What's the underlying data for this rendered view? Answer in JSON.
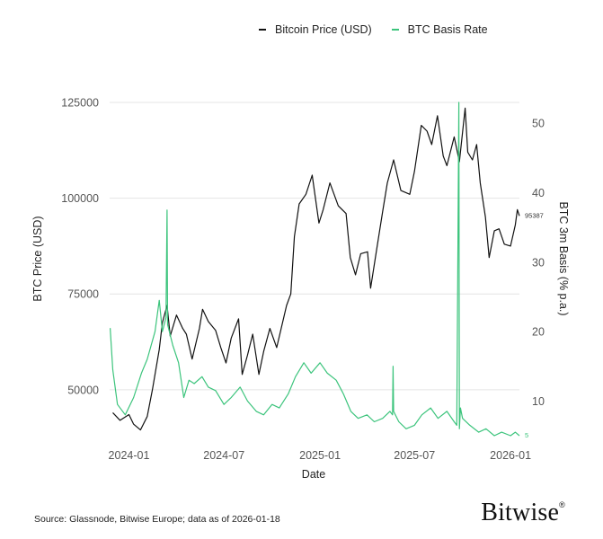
{
  "legend": {
    "price_label": "Bitcoin Price (USD)",
    "basis_label": "BTC Basis Rate",
    "price_color": "#111111",
    "basis_color": "#3cc47c"
  },
  "source": "Source: Glassnode, Bitwise Europe; data as of 2026-01-18",
  "brand": {
    "name": "Bitwise",
    "mark": "®"
  },
  "chart_data": {
    "type": "line",
    "xlabel": "Date",
    "ylabel_left": "BTC Price (USD)",
    "ylabel_right": "BTC 3m Basis (% p.a.)",
    "x_ticks": [
      "2024-01",
      "2024-07",
      "2025-01",
      "2025-07",
      "2026-01"
    ],
    "y_left_ticks": [
      50000,
      75000,
      100000,
      125000
    ],
    "y_right_ticks": [
      10,
      20,
      30,
      40,
      50
    ],
    "y_left_range": [
      38000,
      125000
    ],
    "y_right_range": [
      5,
      53
    ],
    "x_range": [
      "2023-11-25",
      "2026-01-18"
    ],
    "grid": true,
    "legend_position": "top-right",
    "end_labels": {
      "price": "95387",
      "basis": "5"
    },
    "series": [
      {
        "name": "Bitcoin Price (USD)",
        "axis": "left",
        "x": [
          "2023-12-01",
          "2023-12-15",
          "2024-01-01",
          "2024-01-10",
          "2024-01-23",
          "2024-02-05",
          "2024-02-15",
          "2024-02-28",
          "2024-03-05",
          "2024-03-14",
          "2024-03-20",
          "2024-04-01",
          "2024-04-13",
          "2024-04-20",
          "2024-05-01",
          "2024-05-15",
          "2024-05-21",
          "2024-06-01",
          "2024-06-15",
          "2024-06-25",
          "2024-07-05",
          "2024-07-15",
          "2024-07-29",
          "2024-08-05",
          "2024-08-15",
          "2024-08-25",
          "2024-09-06",
          "2024-09-15",
          "2024-09-27",
          "2024-10-10",
          "2024-10-29",
          "2024-11-06",
          "2024-11-13",
          "2024-11-22",
          "2024-12-05",
          "2024-12-17",
          "2024-12-30",
          "2025-01-07",
          "2025-01-20",
          "2025-02-05",
          "2025-02-20",
          "2025-02-28",
          "2025-03-10",
          "2025-03-20",
          "2025-04-02",
          "2025-04-08",
          "2025-04-20",
          "2025-05-01",
          "2025-05-10",
          "2025-05-22",
          "2025-06-05",
          "2025-06-22",
          "2025-07-01",
          "2025-07-14",
          "2025-07-25",
          "2025-08-03",
          "2025-08-14",
          "2025-08-25",
          "2025-09-01",
          "2025-09-15",
          "2025-09-25",
          "2025-10-06",
          "2025-10-11",
          "2025-10-20",
          "2025-10-28",
          "2025-11-04",
          "2025-11-14",
          "2025-11-21",
          "2025-12-01",
          "2025-12-10",
          "2025-12-20",
          "2026-01-01",
          "2026-01-10",
          "2026-01-14",
          "2026-01-18"
        ],
        "values": [
          44000,
          42000,
          43500,
          41000,
          39500,
          43000,
          50000,
          60500,
          67500,
          72000,
          64000,
          69500,
          66000,
          64500,
          58000,
          66000,
          71000,
          67800,
          65500,
          61000,
          57000,
          63500,
          68500,
          54000,
          59000,
          64500,
          54000,
          60000,
          66000,
          61000,
          72000,
          75000,
          90000,
          98500,
          101000,
          106000,
          93500,
          97000,
          104000,
          98000,
          96000,
          84500,
          80000,
          85500,
          86000,
          76500,
          87000,
          96500,
          104000,
          110000,
          102000,
          101000,
          107000,
          119000,
          117500,
          114000,
          121500,
          111000,
          108500,
          116000,
          109500,
          123500,
          112000,
          110000,
          114000,
          104000,
          95000,
          84500,
          91500,
          92000,
          88000,
          87500,
          93000,
          97000,
          95387
        ]
      },
      {
        "name": "BTC Basis Rate",
        "axis": "right",
        "x": [
          "2023-11-26",
          "2023-12-01",
          "2023-12-10",
          "2023-12-25",
          "2024-01-10",
          "2024-01-25",
          "2024-02-05",
          "2024-02-20",
          "2024-02-28",
          "2024-03-05",
          "2024-03-12",
          "2024-03-14",
          "2024-03-15",
          "2024-03-25",
          "2024-04-05",
          "2024-04-15",
          "2024-04-25",
          "2024-05-05",
          "2024-05-20",
          "2024-06-01",
          "2024-06-15",
          "2024-07-01",
          "2024-07-15",
          "2024-08-01",
          "2024-08-15",
          "2024-09-01",
          "2024-09-15",
          "2024-10-01",
          "2024-10-15",
          "2024-11-01",
          "2024-11-15",
          "2024-12-01",
          "2024-12-15",
          "2025-01-01",
          "2025-01-15",
          "2025-02-01",
          "2025-02-15",
          "2025-03-01",
          "2025-03-15",
          "2025-04-01",
          "2025-04-15",
          "2025-05-01",
          "2025-05-15",
          "2025-05-20",
          "2025-05-21",
          "2025-05-22",
          "2025-06-01",
          "2025-06-15",
          "2025-07-01",
          "2025-07-15",
          "2025-08-01",
          "2025-08-15",
          "2025-09-01",
          "2025-09-15",
          "2025-09-20",
          "2025-09-24",
          "2025-09-25",
          "2025-09-27",
          "2025-10-01",
          "2025-10-15",
          "2025-11-01",
          "2025-11-15",
          "2025-12-01",
          "2025-12-15",
          "2026-01-01",
          "2026-01-10",
          "2026-01-18"
        ],
        "values": [
          20.5,
          14.5,
          9.5,
          8.0,
          10.5,
          14.0,
          16.0,
          20.0,
          24.5,
          20.0,
          22.0,
          37.5,
          21.0,
          18.0,
          15.5,
          10.5,
          13.0,
          12.5,
          13.5,
          12.0,
          11.5,
          9.5,
          10.5,
          12.0,
          10.0,
          8.5,
          8.0,
          9.5,
          9.0,
          11.0,
          13.5,
          15.5,
          14.0,
          15.5,
          14.0,
          13.0,
          11.0,
          8.5,
          7.5,
          8.0,
          7.0,
          7.5,
          8.5,
          8.0,
          15.0,
          8.5,
          7.0,
          6.0,
          6.5,
          8.0,
          9.0,
          7.5,
          8.5,
          7.0,
          6.5,
          53.0,
          6.0,
          9.0,
          7.5,
          6.5,
          5.5,
          6.0,
          5.0,
          5.5,
          5.0,
          5.5,
          5.0
        ]
      }
    ]
  }
}
